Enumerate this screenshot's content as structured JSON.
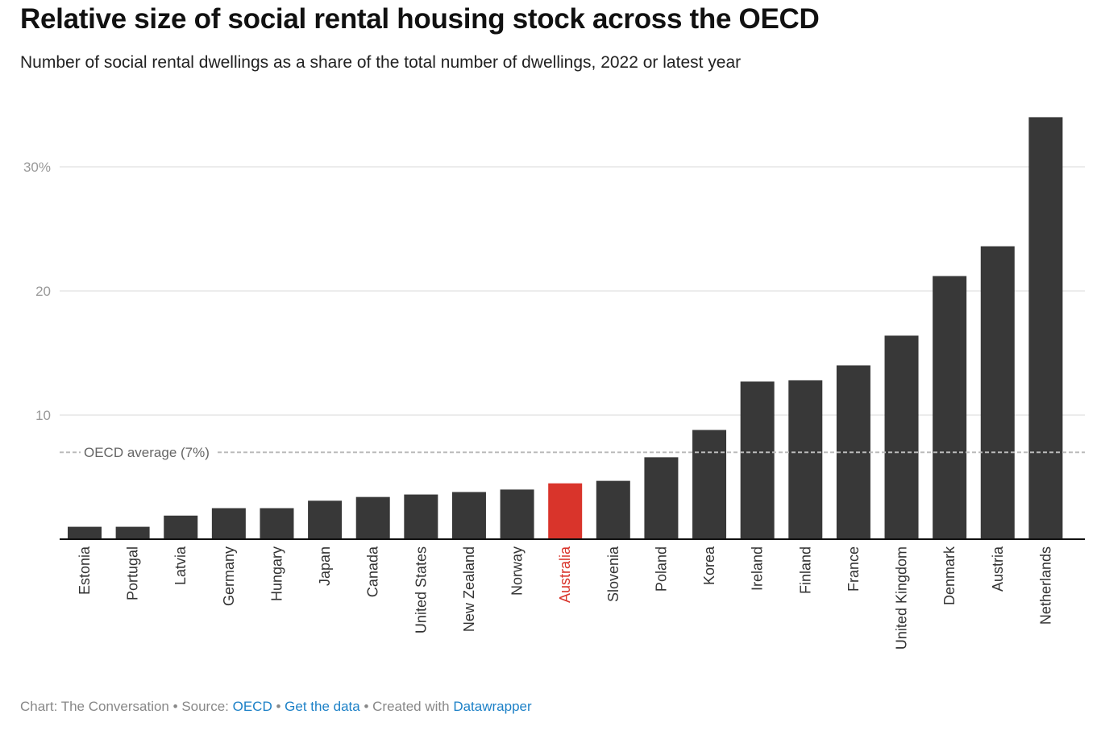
{
  "title": "Relative size of social rental housing stock across the OECD",
  "subtitle": "Number of social rental dwellings as a share of the total number of dwellings, 2022 or latest year",
  "footer": {
    "chart_credit": "Chart: The Conversation",
    "sep": " • ",
    "source_label": "Source: ",
    "source_link": "OECD",
    "get_data_link": "Get the data",
    "created_label": "Created with ",
    "created_link": "Datawrapper"
  },
  "colors": {
    "bar": "#383838",
    "highlight": "#d9342b",
    "grid": "#e5e5e5",
    "reference": "#bbbbbb",
    "link": "#1d81c7"
  },
  "chart_data": {
    "type": "bar",
    "title": "Relative size of social rental housing stock across the OECD",
    "xlabel": "",
    "ylabel": "",
    "ylim": [
      0,
      35
    ],
    "yticks": [
      10,
      20,
      30
    ],
    "ytick_labels": [
      "10",
      "20",
      "30%"
    ],
    "grid": true,
    "categories": [
      "Estonia",
      "Portugal",
      "Latvia",
      "Germany",
      "Hungary",
      "Japan",
      "Canada",
      "United States",
      "New Zealand",
      "Norway",
      "Australia",
      "Slovenia",
      "Poland",
      "Korea",
      "Ireland",
      "Finland",
      "France",
      "United Kingdom",
      "Denmark",
      "Austria",
      "Netherlands"
    ],
    "values": [
      1.0,
      1.0,
      1.9,
      2.5,
      2.5,
      3.1,
      3.4,
      3.6,
      3.8,
      4.0,
      4.5,
      4.7,
      6.6,
      8.8,
      12.7,
      12.8,
      14.0,
      16.4,
      21.2,
      23.6,
      34.0
    ],
    "highlight": "Australia",
    "reference_line": {
      "value": 7,
      "label": "OECD average (7%)"
    }
  }
}
